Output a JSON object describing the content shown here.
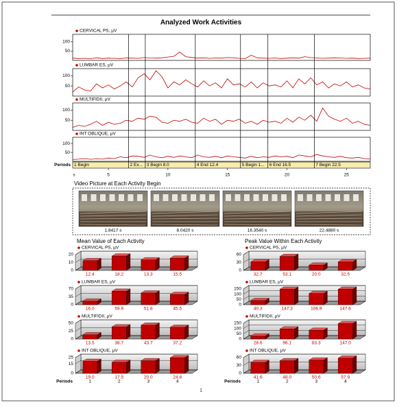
{
  "title": "Analyzed Work Activities",
  "chart_data": [
    {
      "type": "line",
      "x": [
        2,
        2.5,
        3,
        3.5,
        4,
        4.5,
        5,
        5.5,
        6,
        6.5,
        7,
        7.5,
        8,
        8.5,
        9,
        9.5,
        10,
        10.5,
        11,
        11.5,
        12,
        12.5,
        13,
        13.5,
        14,
        14.5,
        15,
        15.5,
        16,
        16.5,
        17,
        17.5,
        18,
        18.5,
        19,
        19.5,
        20,
        20.5,
        21,
        21.5,
        22,
        22.5,
        23,
        23.5,
        24,
        24.5,
        25,
        25.5,
        26,
        26.5,
        27
      ],
      "xlim": [
        2,
        27
      ],
      "xticks": [
        5,
        10,
        15,
        20,
        25
      ],
      "xlabel": "s",
      "series": [
        {
          "name": "CERVICAL PS, µV",
          "color": "#c00000",
          "ylim": [
            0,
            140
          ],
          "yticks": [
            50,
            100
          ],
          "values": [
            12,
            10,
            11,
            9,
            14,
            10,
            12,
            11,
            10,
            13,
            12,
            11,
            15,
            13,
            12,
            14,
            18,
            22,
            45,
            20,
            16,
            12,
            14,
            11,
            13,
            12,
            15,
            14,
            11,
            10,
            28,
            14,
            12,
            11,
            13,
            10,
            12,
            14,
            12,
            20,
            15,
            13,
            11,
            12,
            14,
            13,
            11,
            12,
            10,
            11,
            12
          ]
        },
        {
          "name": "LUMBAR ES, µV",
          "color": "#c00000",
          "ylim": [
            0,
            135
          ],
          "yticks": [
            50,
            100
          ],
          "values": [
            20,
            45,
            30,
            25,
            60,
            40,
            55,
            35,
            50,
            70,
            45,
            90,
            110,
            80,
            125,
            95,
            40,
            70,
            55,
            80,
            60,
            45,
            75,
            50,
            65,
            40,
            85,
            55,
            60,
            45,
            70,
            40,
            65,
            50,
            55,
            45,
            75,
            40,
            85,
            60,
            90,
            55,
            70,
            40,
            60,
            50,
            70,
            45,
            55,
            40,
            35
          ]
        },
        {
          "name": "MULTIFIDII, µV",
          "color": "#c00000",
          "ylim": [
            0,
            135
          ],
          "yticks": [
            50,
            100
          ],
          "values": [
            15,
            25,
            20,
            30,
            45,
            25,
            40,
            30,
            35,
            50,
            45,
            60,
            55,
            70,
            65,
            40,
            35,
            50,
            45,
            55,
            40,
            35,
            60,
            45,
            55,
            30,
            50,
            45,
            55,
            35,
            45,
            30,
            50,
            40,
            45,
            35,
            60,
            40,
            65,
            50,
            75,
            45,
            110,
            70,
            55,
            45,
            60,
            35,
            45,
            30,
            25
          ]
        },
        {
          "name": "INT OBLIQUE, µV",
          "color": "#c00000",
          "ylim": [
            0,
            135
          ],
          "yticks": [
            50,
            100
          ],
          "values": [
            10,
            12,
            15,
            11,
            14,
            12,
            18,
            15,
            25,
            20,
            30,
            28,
            22,
            35,
            25,
            20,
            28,
            22,
            30,
            25,
            20,
            35,
            25,
            22,
            28,
            20,
            30,
            25,
            22,
            18,
            28,
            20,
            25,
            22,
            30,
            25,
            28,
            20,
            35,
            30,
            25,
            38,
            30,
            25,
            22,
            28,
            20,
            18,
            22,
            15,
            12
          ]
        }
      ],
      "periods": {
        "label": "Periods",
        "items": [
          {
            "label": "1 Begin",
            "start": 2
          },
          {
            "label": "2 Ex...",
            "start": 6.7
          },
          {
            "label": "3 Begin 8.0",
            "start": 8.1
          },
          {
            "label": "4 End 12.4",
            "start": 12.3
          },
          {
            "label": "5 Begin 1...",
            "start": 16.1
          },
          {
            "label": "6 End 16.5",
            "start": 18.4
          },
          {
            "label": "7 Begin 22.5",
            "start": 22.3
          }
        ]
      }
    },
    {
      "type": "bar",
      "title": "Mean Value of Each Activity",
      "category_label": "Periods",
      "categories": [
        "1",
        "2",
        "3",
        "4"
      ],
      "series": [
        {
          "name": "CERVICAL PS, µV",
          "color": "#c00000",
          "ylim": [
            0,
            20
          ],
          "yticks": [
            0,
            10,
            20
          ],
          "values": [
            12.4,
            18.2,
            13.3,
            15.5
          ],
          "value_labels": [
            "12.4",
            "18.2",
            "13.3",
            "15.5"
          ]
        },
        {
          "name": "LUMBAR ES, µV",
          "color": "#c00000",
          "ylim": [
            0,
            70
          ],
          "yticks": [
            0,
            35,
            70
          ],
          "values": [
            16.0,
            59.9,
            51.8,
            45.5
          ],
          "value_labels": [
            "16.0",
            "59.9",
            "51.8",
            "45.5"
          ]
        },
        {
          "name": "MULTIFIDII, µV",
          "color": "#c00000",
          "ylim": [
            0,
            50
          ],
          "yticks": [
            0,
            25,
            50
          ],
          "values": [
            13.5,
            38.7,
            43.7,
            37.2
          ],
          "value_labels": [
            "13.5",
            "38.7",
            "43.7",
            "37.2"
          ]
        },
        {
          "name": "INT OBLIQUE, µV",
          "color": "#c00000",
          "ylim": [
            0,
            25
          ],
          "yticks": [
            0,
            15,
            25
          ],
          "values": [
            19.0,
            17.5,
            20.0,
            24.8
          ],
          "value_labels": [
            "19.0",
            "17.5",
            "20.0",
            "24.8"
          ]
        }
      ]
    },
    {
      "type": "bar",
      "title": "Peak Value Within Each Activity",
      "category_label": "Periods",
      "categories": [
        "1",
        "2",
        "3",
        "4"
      ],
      "series": [
        {
          "name": "CERVICAL PS, µV",
          "color": "#c00000",
          "ylim": [
            0,
            60
          ],
          "yticks": [
            0,
            30,
            60
          ],
          "values": [
            32.7,
            53.1,
            20.0,
            32.5
          ],
          "value_labels": [
            "32.7",
            "53.1",
            "20.0",
            "32.5"
          ]
        },
        {
          "name": "LUMBAR ES, µV",
          "color": "#c00000",
          "ylim": [
            0,
            150
          ],
          "yticks": [
            0,
            50,
            100,
            150
          ],
          "values": [
            40.3,
            147.3,
            106.9,
            147.6
          ],
          "value_labels": [
            "40.3",
            "147.3",
            "106.9",
            "147.6"
          ]
        },
        {
          "name": "MULTIFIDII, µV",
          "color": "#c00000",
          "ylim": [
            0,
            150
          ],
          "yticks": [
            0,
            50,
            100,
            150
          ],
          "values": [
            28.6,
            96.1,
            83.3,
            147.0
          ],
          "value_labels": [
            "28.6",
            "96.1",
            "83.3",
            "147.0"
          ]
        },
        {
          "name": "INT OBLIQUE, µV",
          "color": "#c00000",
          "ylim": [
            0,
            60
          ],
          "yticks": [
            0,
            30,
            60
          ],
          "values": [
            41.6,
            48.0,
            50.6,
            57.9
          ],
          "value_labels": [
            "41.6",
            "48.0",
            "50.6",
            "57.9"
          ]
        }
      ]
    }
  ],
  "video": {
    "title": "Video Picture at Each Activity Begin",
    "captions": [
      "1.8417 s",
      "8.0420 s",
      "16.3540 s",
      "22.4880 s"
    ]
  },
  "page_number": "1"
}
